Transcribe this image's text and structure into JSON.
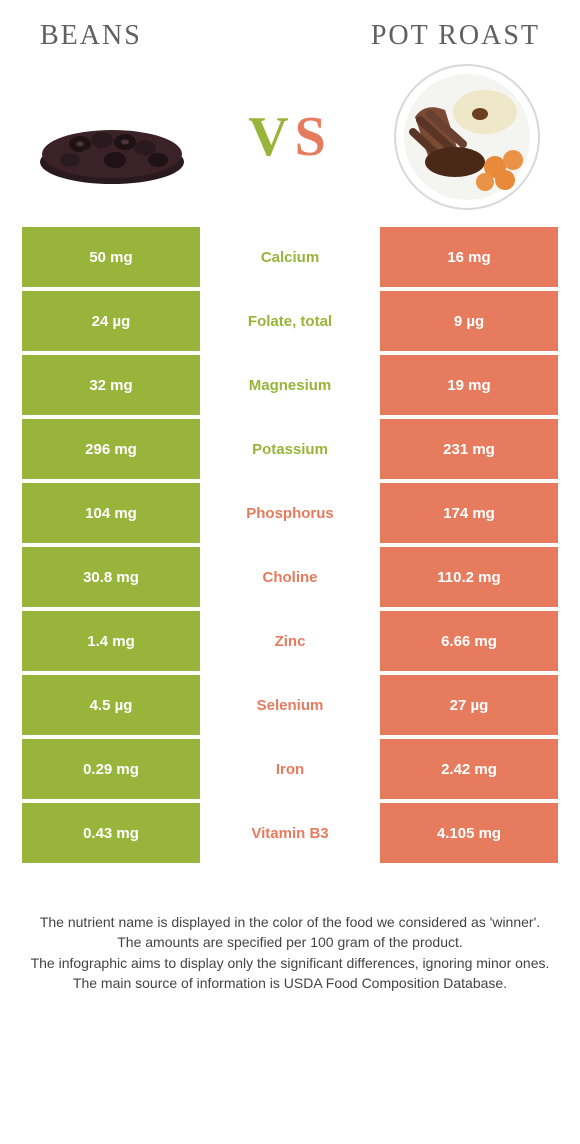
{
  "foods": {
    "left": {
      "name": "Beans",
      "color": "#99b43a"
    },
    "right": {
      "name": "Pot roast",
      "color": "#e77b5e"
    }
  },
  "vs": {
    "v": "V",
    "s": "S"
  },
  "colors": {
    "left_bg": "#99b43a",
    "right_bg": "#e77b5e",
    "left_label": "#99b43a",
    "right_label": "#e77b5e"
  },
  "rows": [
    {
      "left": "50 mg",
      "label": "Calcium",
      "right": "16 mg",
      "winner": "left"
    },
    {
      "left": "24 µg",
      "label": "Folate, total",
      "right": "9 µg",
      "winner": "left"
    },
    {
      "left": "32 mg",
      "label": "Magnesium",
      "right": "19 mg",
      "winner": "left"
    },
    {
      "left": "296 mg",
      "label": "Potassium",
      "right": "231 mg",
      "winner": "left"
    },
    {
      "left": "104 mg",
      "label": "Phosphorus",
      "right": "174 mg",
      "winner": "right"
    },
    {
      "left": "30.8 mg",
      "label": "Choline",
      "right": "110.2 mg",
      "winner": "right"
    },
    {
      "left": "1.4 mg",
      "label": "Zinc",
      "right": "6.66 mg",
      "winner": "right"
    },
    {
      "left": "4.5 µg",
      "label": "Selenium",
      "right": "27 µg",
      "winner": "right"
    },
    {
      "left": "0.29 mg",
      "label": "Iron",
      "right": "2.42 mg",
      "winner": "right"
    },
    {
      "left": "0.43 mg",
      "label": "Vitamin B3",
      "right": "4.105 mg",
      "winner": "right"
    }
  ],
  "footer": {
    "line1": "The nutrient name is displayed in the color of the food we considered as 'winner'.",
    "line2": "The amounts are specified per 100 gram of the product.",
    "line3": "The infographic aims to display only the significant differences, ignoring minor ones.",
    "line4": "The main source of information is USDA Food Composition Database."
  }
}
